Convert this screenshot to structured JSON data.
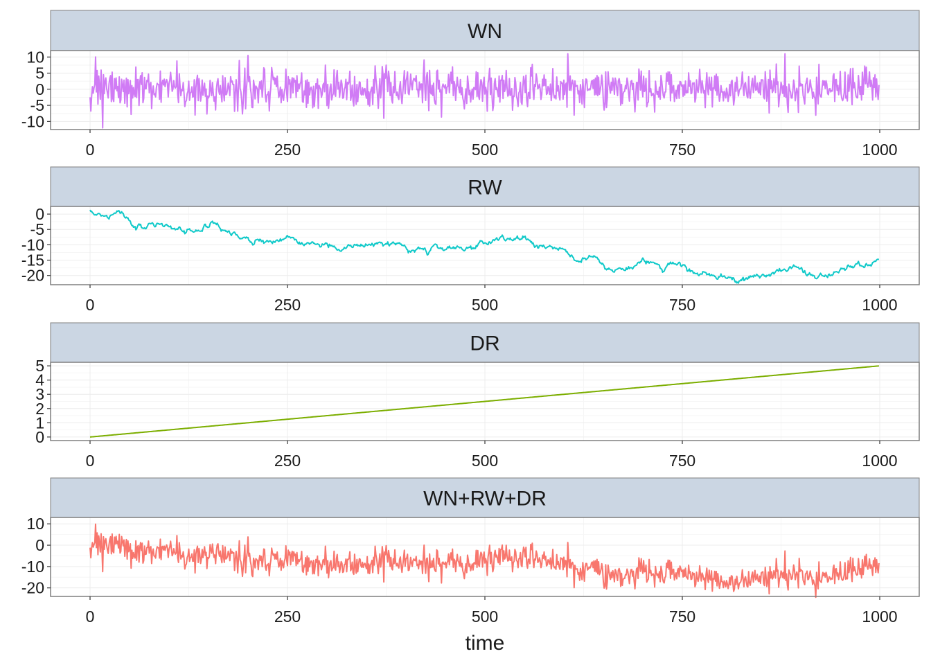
{
  "chart_data": {
    "type": "line",
    "xlabel": "time",
    "ylabel": "",
    "panel_layout": "vertical facets, free y scales",
    "grid": true,
    "legend": "none",
    "colors": {
      "strip_background": "#cbd6e3",
      "strip_border": "#7f7f7f",
      "panel_border": "#7f7f7f",
      "major_grid": "#ececec",
      "minor_grid": "#f6f6f6"
    },
    "x": {
      "range": [
        -50,
        1050
      ],
      "ticks": [
        0,
        250,
        500,
        750,
        1000
      ],
      "tick_labels": [
        "0",
        "250",
        "500",
        "750",
        "1000"
      ]
    },
    "panels": [
      {
        "title": "WN",
        "color": "#d07bf5",
        "ylim": [
          -12.5,
          12
        ],
        "yticks": [
          -10,
          -5,
          0,
          5,
          10
        ],
        "ytick_labels": [
          "-10",
          "-5",
          "0",
          "5",
          "10"
        ],
        "series": {
          "generator": "white_noise",
          "n": 1000,
          "sd": 3,
          "approx_range": [
            -12,
            11
          ],
          "points": [
            [
              0,
              -2.5
            ],
            [
              7,
              10
            ],
            [
              16,
              -12
            ],
            [
              200,
              10.5
            ],
            [
              372,
              -9
            ],
            [
              605,
              11
            ],
            [
              966,
              6.5
            ],
            [
              1000,
              -8
            ]
          ]
        }
      },
      {
        "title": "RW",
        "color": "#10c9c9",
        "ylim": [
          -23,
          2.5
        ],
        "yticks": [
          -20,
          -15,
          -10,
          -5,
          0
        ],
        "ytick_labels": [
          "-20",
          "-15",
          "-10",
          "-5",
          "0"
        ],
        "series": {
          "generator": "random_walk",
          "n": 1000,
          "points": [
            [
              0,
              1
            ],
            [
              20,
              -1
            ],
            [
              40,
              0.5
            ],
            [
              60,
              -4
            ],
            [
              90,
              -3.5
            ],
            [
              120,
              -6
            ],
            [
              140,
              -5
            ],
            [
              155,
              -3
            ],
            [
              180,
              -6
            ],
            [
              210,
              -8.5
            ],
            [
              250,
              -8
            ],
            [
              280,
              -10
            ],
            [
              310,
              -10.5
            ],
            [
              350,
              -10.5
            ],
            [
              380,
              -9.5
            ],
            [
              400,
              -11
            ],
            [
              420,
              -12
            ],
            [
              450,
              -10.5
            ],
            [
              480,
              -11
            ],
            [
              505,
              -8
            ],
            [
              530,
              -9
            ],
            [
              550,
              -9
            ],
            [
              580,
              -12
            ],
            [
              600,
              -13
            ],
            [
              620,
              -15
            ],
            [
              635,
              -13.5
            ],
            [
              660,
              -17
            ],
            [
              690,
              -17
            ],
            [
              700,
              -15
            ],
            [
              720,
              -16.5
            ],
            [
              750,
              -17
            ],
            [
              780,
              -19.5
            ],
            [
              800,
              -21
            ],
            [
              820,
              -22
            ],
            [
              840,
              -19.5
            ],
            [
              860,
              -19.5
            ],
            [
              880,
              -18
            ],
            [
              900,
              -18.5
            ],
            [
              920,
              -19.5
            ],
            [
              940,
              -20
            ],
            [
              960,
              -18.5
            ],
            [
              980,
              -17
            ],
            [
              1000,
              -16
            ]
          ]
        }
      },
      {
        "title": "DR",
        "color": "#7cae00",
        "ylim": [
          -0.25,
          5.25
        ],
        "yticks": [
          0,
          1,
          2,
          3,
          4,
          5
        ],
        "ytick_labels": [
          "0",
          "1",
          "2",
          "3",
          "4",
          "5"
        ],
        "series": {
          "generator": "drift",
          "n": 1000,
          "points": [
            [
              0,
              0
            ],
            [
              1000,
              5
            ]
          ]
        }
      },
      {
        "title": "WN+RW+DR",
        "color": "#f8766d",
        "ylim": [
          -24,
          13
        ],
        "yticks": [
          -20,
          -10,
          0,
          10
        ],
        "ytick_labels": [
          "-20",
          "-10",
          "0",
          "10"
        ],
        "series": {
          "generator": "sum_of_panels",
          "n": 1000,
          "components": [
            "WN",
            "RW",
            "DR"
          ]
        }
      }
    ]
  }
}
